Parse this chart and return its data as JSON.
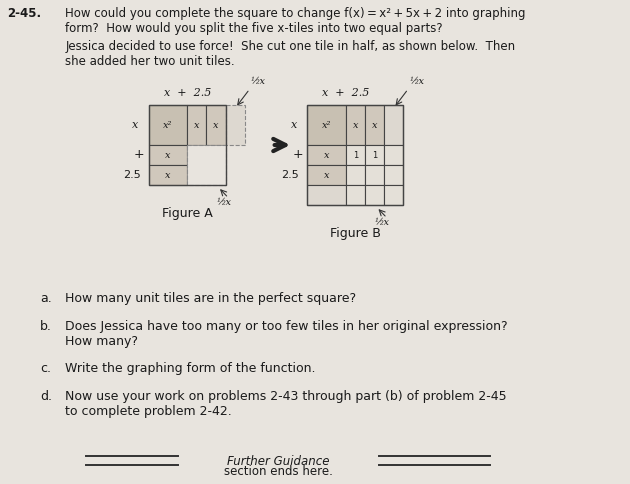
{
  "page_bg": "#e8e4de",
  "problem_number": "2-45.",
  "title_text": "How could you complete the square to change f(x) = x² + 5x + 2 into graphing\nform?  How would you split the five x-tiles into two equal parts?",
  "intro_text": "Jessica decided to use force!  She cut one tile in half, as shown below.  Then\nshe added her two unit tiles.",
  "fig_a_label": "Figure A",
  "fig_b_label": "Figure B",
  "x2_color": "#c8c0b2",
  "x_tile_color": "#d0c8bc",
  "unit_color": "#e4e0d8",
  "x2_color_b": "#c8c0b2",
  "questions": [
    [
      "a.",
      "How many unit tiles are in the perfect square?"
    ],
    [
      "b.",
      "Does Jessica have too many or too few tiles in her original expression?\nHow many?"
    ],
    [
      "c.",
      "Write the graphing form of the function."
    ],
    [
      "d.",
      "Now use your work on problems 2-43 through part (b) of problem 2-45\nto complete problem 2-42."
    ]
  ],
  "footer_italic": "Further Guidance",
  "footer_normal": "section ends here."
}
